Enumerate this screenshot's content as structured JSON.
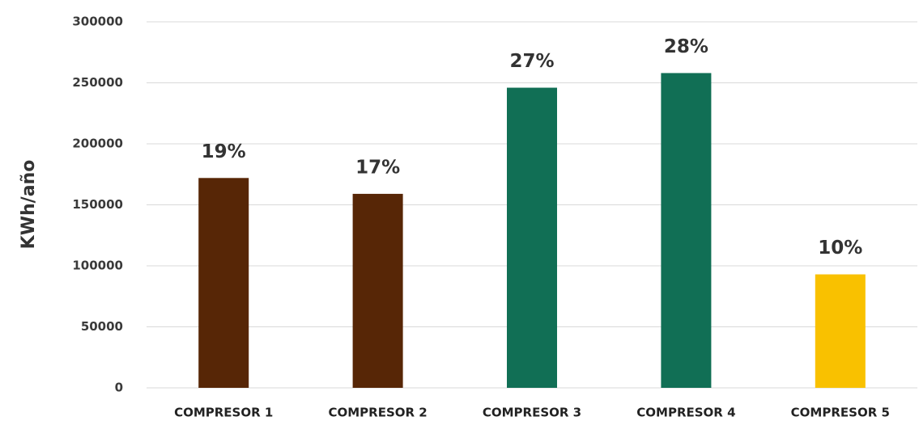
{
  "chart_data": {
    "type": "bar",
    "y_label": "KWh/año",
    "categories": [
      "COMPRESOR 1",
      "COMPRESOR 2",
      "COMPRESOR 3",
      "COMPRESOR 4",
      "COMPRESOR 5"
    ],
    "values": [
      172000,
      159000,
      246000,
      258000,
      93000
    ],
    "data_labels": [
      "19%",
      "17%",
      "27%",
      "28%",
      "10%"
    ],
    "colors": [
      "#572606",
      "#572606",
      "#116f55",
      "#116f55",
      "#f9c100"
    ],
    "ylim": [
      0,
      300000
    ],
    "yticks": [
      0,
      50000,
      100000,
      150000,
      200000,
      250000,
      300000
    ],
    "grid": true
  }
}
